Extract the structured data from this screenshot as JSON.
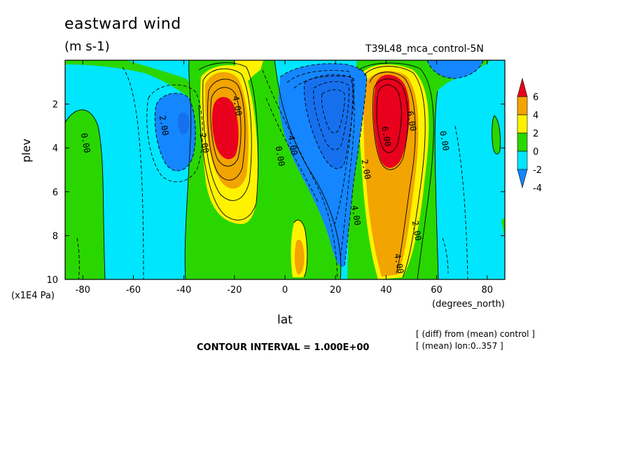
{
  "chart_data": {
    "type": "heatmap",
    "title": "eastward wind",
    "units": "(m s-1)",
    "experiment": "T39L48_mca_control-5N",
    "xlabel": "lat",
    "ylabel": "plev",
    "x_unit_label": "(degrees_north)",
    "y_unit_label": "(x1E4 Pa)",
    "xlim": [
      -87,
      87
    ],
    "ylim": [
      10,
      0
    ],
    "x_ticks": [
      "-80",
      "-60",
      "-40",
      "-20",
      "0",
      "20",
      "40",
      "60",
      "80"
    ],
    "x_tick_values": [
      -80,
      -60,
      -40,
      -20,
      0,
      20,
      40,
      60,
      80
    ],
    "y_ticks": [
      "2",
      "4",
      "6",
      "8",
      "10"
    ],
    "y_tick_values": [
      2,
      4,
      6,
      8,
      10
    ],
    "contour_interval": "CONTOUR INTERVAL = 1.000E+00",
    "colorbar": {
      "labels": [
        "6",
        "4",
        "2",
        "0",
        "-2",
        "-4"
      ],
      "colors": [
        "#e8001c",
        "#f2a400",
        "#fff200",
        "#2ad600",
        "#00e6ff",
        "#1486ff"
      ]
    },
    "contour_labels": [
      {
        "text": "0.00",
        "x": -80,
        "y": 3.8
      },
      {
        "text": "2.00",
        "x": -49,
        "y": 3.0
      },
      {
        "text": "2.00",
        "x": -33,
        "y": 3.8
      },
      {
        "text": "4.00",
        "x": -20,
        "y": 2.1
      },
      {
        "text": "0.00",
        "x": -3,
        "y": 4.4
      },
      {
        "text": "4.00",
        "x": 2,
        "y": 3.9
      },
      {
        "text": "2.00",
        "x": 31,
        "y": 5.0
      },
      {
        "text": "4.00",
        "x": 27,
        "y": 7.1
      },
      {
        "text": "6.00",
        "x": 39,
        "y": 3.5
      },
      {
        "text": "6.00",
        "x": 49,
        "y": 2.8
      },
      {
        "text": "0.00",
        "x": 62,
        "y": 3.7
      },
      {
        "text": "2.00",
        "x": 51,
        "y": 7.8
      },
      {
        "text": "4.00",
        "x": 44,
        "y": 9.3
      }
    ],
    "notes": [
      "[ (diff) from (mean) control ]",
      "[ (mean) lon:0..357 ]"
    ]
  }
}
